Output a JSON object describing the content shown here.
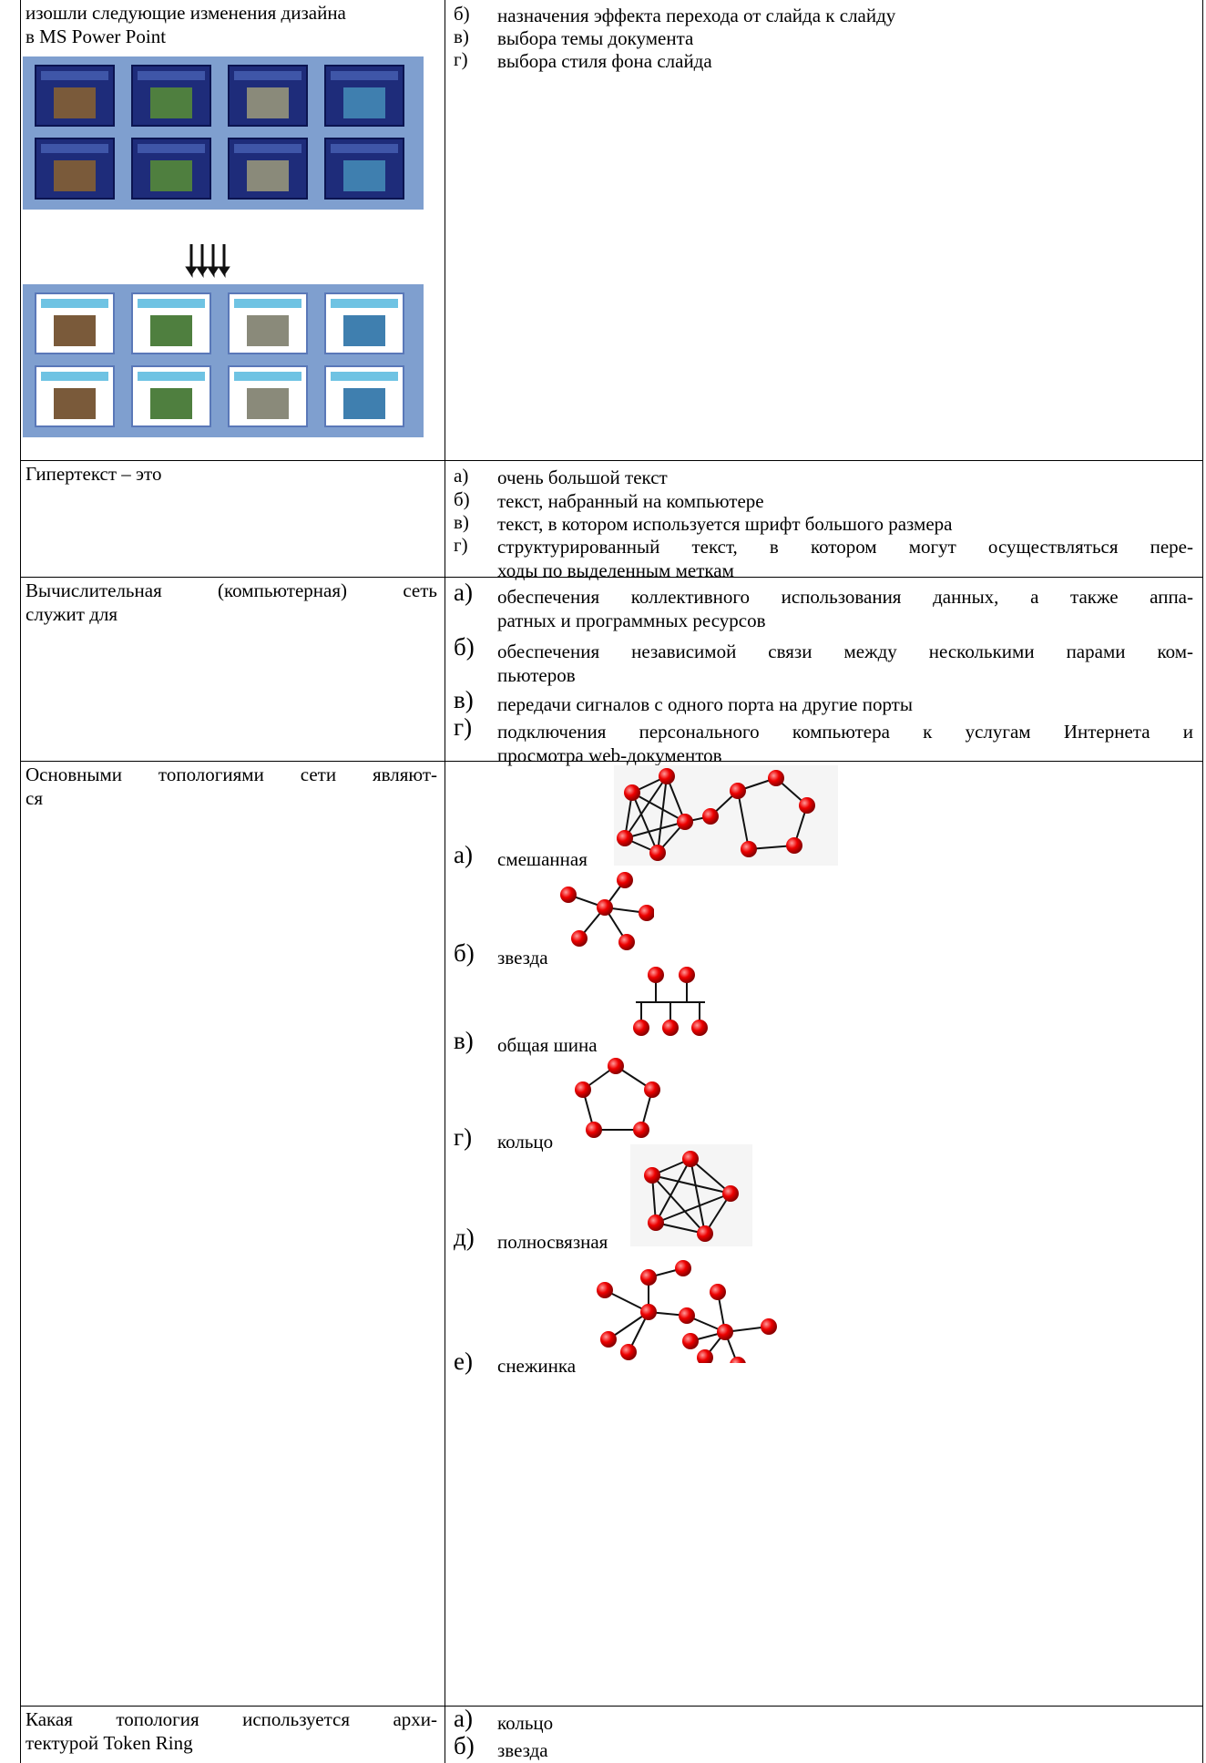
{
  "rows": [
    {
      "question": [
        "изошли следующие изменения дизайна",
        "в MS Power Point"
      ],
      "options": [
        {
          "letter": "б)",
          "lines": [
            "назначения эффекта перехода от слайда к слайду"
          ]
        },
        {
          "letter": "в)",
          "lines": [
            "выбора темы документа"
          ]
        },
        {
          "letter": "г)",
          "lines": [
            "выбора стиля фона слайда"
          ]
        }
      ]
    },
    {
      "question": [
        "Гипертекст – это"
      ],
      "options": [
        {
          "letter": "а)",
          "lines": [
            "очень большой текст"
          ]
        },
        {
          "letter": "б)",
          "lines": [
            "текст, набранный на компьютере"
          ]
        },
        {
          "letter": "в)",
          "lines": [
            "текст, в котором используется шрифт большого размера"
          ]
        },
        {
          "letter": "г)",
          "lines": [
            "структурированный текст, в котором могут осуществляться пере-",
            "ходы по выделенным меткам"
          ]
        }
      ]
    },
    {
      "question": [
        "Вычислительная (компьютерная) сеть",
        "служит для"
      ],
      "options": [
        {
          "letter": "а)",
          "lines": [
            "обеспечения коллективного использования данных, а также аппа-",
            "ратных и программных ресурсов"
          ]
        },
        {
          "letter": "б)",
          "lines": [
            "обеспечения независимой связи между несколькими парами ком-",
            "пьютеров"
          ]
        },
        {
          "letter": "в)",
          "lines": [
            "передачи сигналов с одного порта на другие порты"
          ]
        },
        {
          "letter": "г)",
          "lines": [
            "подключения персонального компьютера к услугам Интернета и",
            "просмотра web-документов"
          ]
        }
      ]
    },
    {
      "question": [
        "Основными топологиями сети являют-",
        "ся"
      ],
      "options": [
        {
          "letter": "а)",
          "lines": [
            "смешанная"
          ]
        },
        {
          "letter": "б)",
          "lines": [
            "звезда"
          ]
        },
        {
          "letter": "в)",
          "lines": [
            "общая шина"
          ]
        },
        {
          "letter": "г)",
          "lines": [
            "кольцо"
          ]
        },
        {
          "letter": "д)",
          "lines": [
            "полносвязная"
          ]
        },
        {
          "letter": "е)",
          "lines": [
            "снежинка"
          ]
        }
      ]
    },
    {
      "question": [
        "Какая топология используется архи-",
        "тектурой Token Ring"
      ],
      "options": [
        {
          "letter": "а)",
          "lines": [
            "кольцо"
          ]
        },
        {
          "letter": "б)",
          "lines": [
            "звезда"
          ]
        }
      ]
    }
  ]
}
